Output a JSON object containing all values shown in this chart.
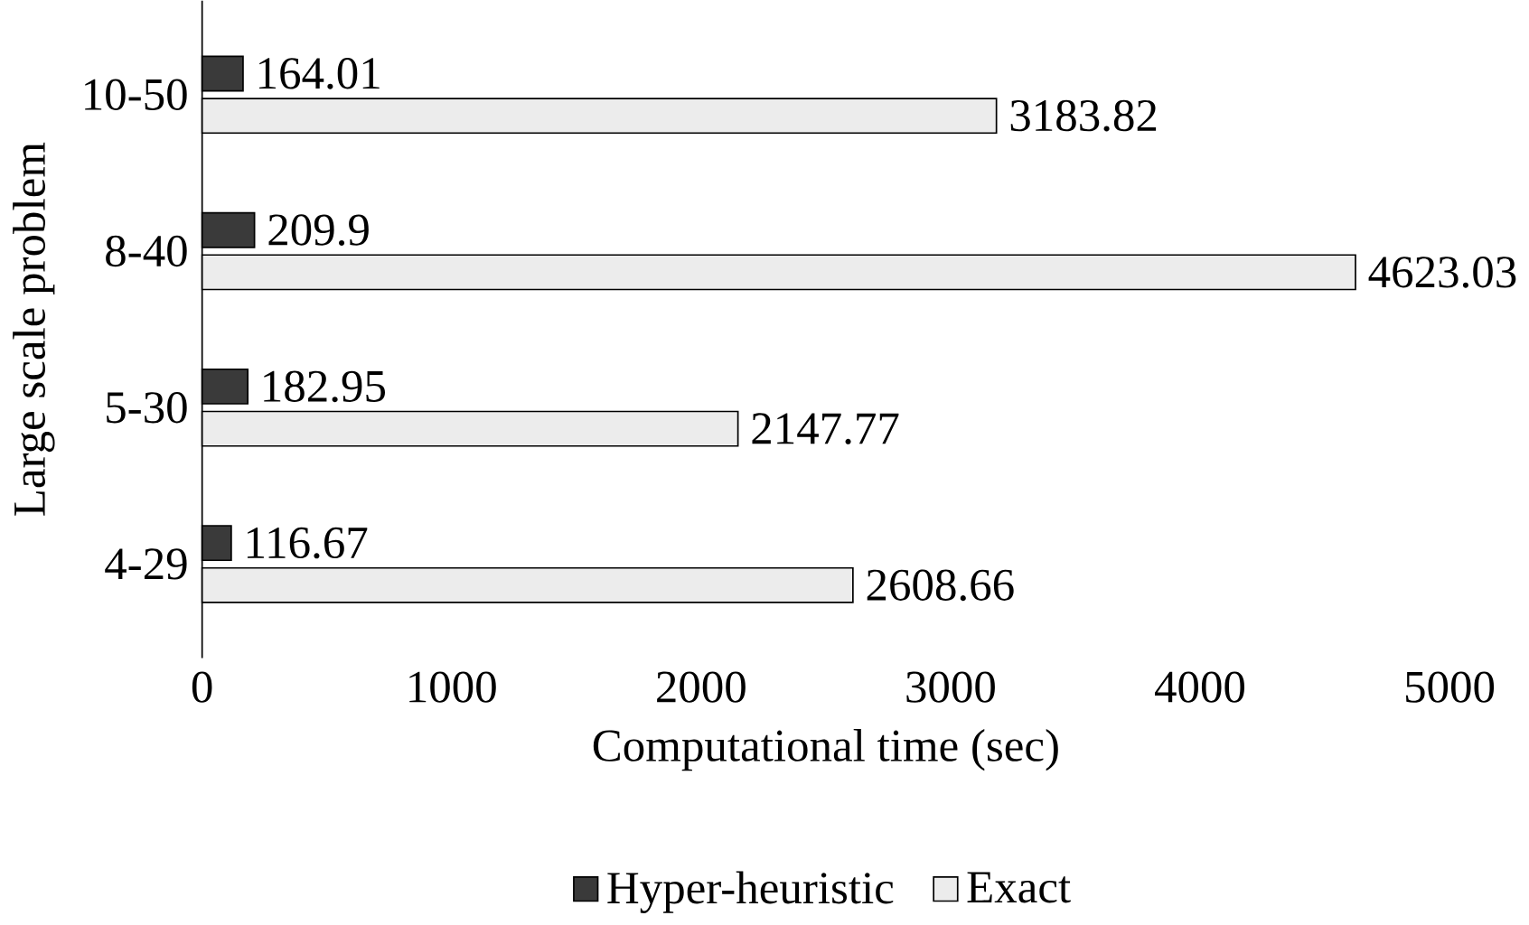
{
  "chart_data": {
    "type": "bar",
    "orientation": "horizontal",
    "xlabel": "Computational time (sec)",
    "ylabel": "Large scale problem",
    "categories": [
      "10-50",
      "8-40",
      "5-30",
      "4-29"
    ],
    "series": [
      {
        "name": "Hyper-heuristic",
        "color": "#3a3a3a",
        "values": [
          164.01,
          209.9,
          182.95,
          116.67
        ],
        "value_labels": [
          "164.01",
          "209.9",
          "182.95",
          "116.67"
        ]
      },
      {
        "name": "Exact",
        "color": "#ececec",
        "values": [
          3183.82,
          4623.03,
          2147.77,
          2608.66
        ],
        "value_labels": [
          "3183.82",
          "4623.03",
          "2147.77",
          "2608.66"
        ]
      }
    ],
    "xlim": [
      0,
      5000
    ],
    "xticks": [
      0,
      1000,
      2000,
      3000,
      4000,
      5000
    ],
    "grid": false,
    "legend": "bottom"
  }
}
